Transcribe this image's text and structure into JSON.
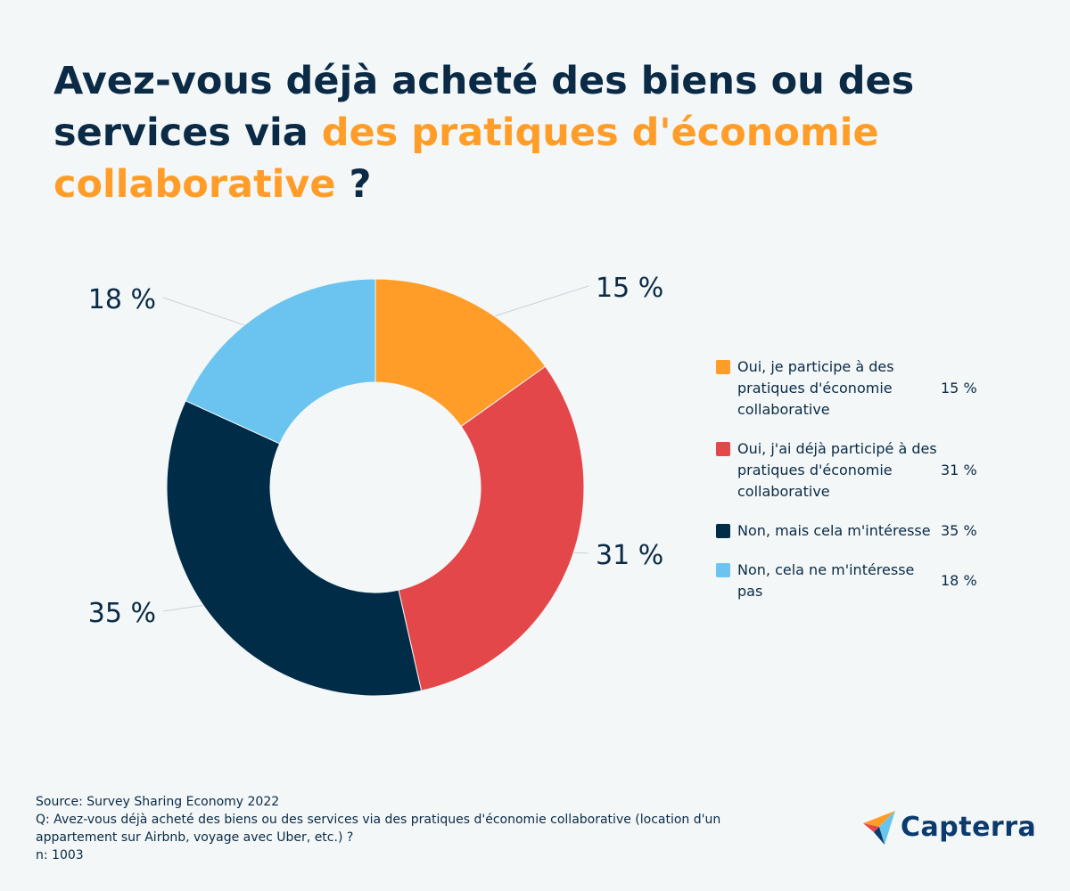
{
  "title": {
    "part1": "Avez-vous déjà acheté des biens ou des services via ",
    "accent": "des pratiques d'économie collaborative",
    "part2": " ?"
  },
  "colors": {
    "accent": "#ff9d28",
    "navy": "#0a2a45"
  },
  "chart_data": {
    "type": "pie",
    "donut": true,
    "categories": [
      "Oui, je participe à des pratiques d'économie collaborative",
      "Oui, j'ai déjà participé à des pratiques d'économie collaborative",
      "Non, mais cela m'intéresse",
      "Non, cela ne m'intéresse pas"
    ],
    "values": [
      15,
      31,
      35,
      18
    ],
    "value_labels": [
      "15 %",
      "31 %",
      "35 %",
      "18 %"
    ],
    "colors": [
      "#ff9d28",
      "#e3474a",
      "#002c47",
      "#6ac4ef"
    ],
    "legend_placement": "right"
  },
  "legend": [
    {
      "label": "Oui, je participe à des pratiques d'économie collaborative",
      "value": "15 %",
      "color": "#ff9d28"
    },
    {
      "label": "Oui, j'ai déjà participé à des pratiques d'économie collaborative",
      "value": "31 %",
      "color": "#e3474a"
    },
    {
      "label": "Non, mais cela m'intéresse",
      "value": "35 %",
      "color": "#002c47"
    },
    {
      "label": "Non, cela ne m'intéresse pas",
      "value": "18 %",
      "color": "#6ac4ef"
    }
  ],
  "footer": {
    "source": "Source: Survey Sharing Economy 2022",
    "question": "Q: Avez-vous déjà acheté des biens ou des services via des pratiques d'économie collaborative (location d'un appartement sur Airbnb, voyage avec Uber, etc.) ?",
    "n": "n: 1003"
  },
  "logo": {
    "text": "Capterra",
    "icon": "capterra-arrow-icon"
  }
}
